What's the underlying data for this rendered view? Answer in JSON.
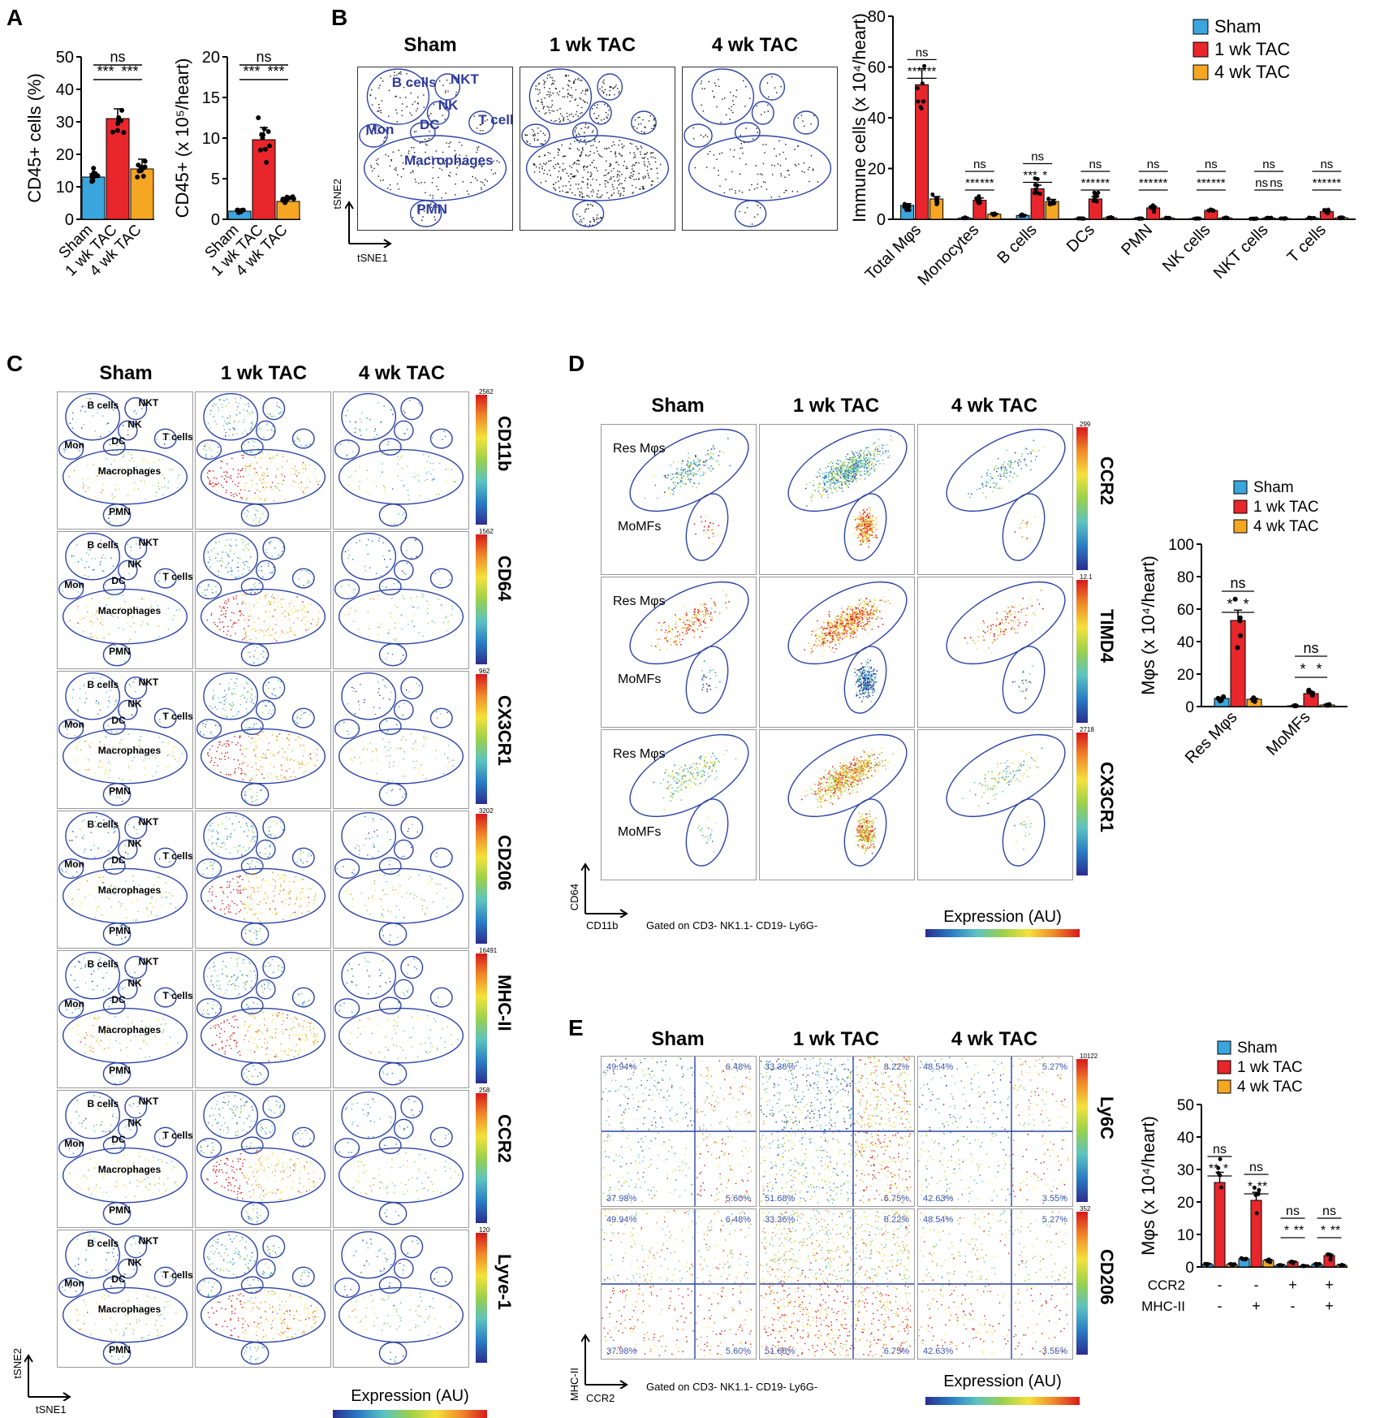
{
  "colors": {
    "sham": "#3aa6dd",
    "tac1": "#e8262b",
    "tac4": "#f5a623",
    "gate": "#2d44a6"
  },
  "panels": {
    "a": "A",
    "b": "B",
    "c": "C",
    "d": "D",
    "e": "E"
  },
  "groups": [
    "Sham",
    "1 wk TAC",
    "4 wk TAC"
  ],
  "cluster_labels": [
    "B cells",
    "NKT",
    "NK",
    "Mon",
    "DC",
    "T cells",
    "Macrophages",
    "PMN"
  ],
  "tsne_axes": {
    "y": "tSNE2",
    "x": "tSNE1"
  },
  "c_markers": [
    "CD11b",
    "CD64",
    "CX3CR1",
    "CD206",
    "MHC-II",
    "CCR2",
    "Lyve-1"
  ],
  "c_scale_max": [
    "2562",
    "1562",
    "962",
    "3202",
    "16491",
    "258",
    "120"
  ],
  "c_footer": "Expression (AU)",
  "d_markers": [
    "CCR2",
    "TIMD4",
    "CX3CR1"
  ],
  "d_scale_max": [
    "299",
    "12.1",
    "2718"
  ],
  "d_gates": {
    "res": "Res Mφs",
    "momf": "MoMFs"
  },
  "d_axes": {
    "y": "CD64",
    "x": "CD11b"
  },
  "d_gated": "Gated on CD3- NK1.1- CD19- Ly6G-",
  "d_footer": "Expression (AU)",
  "e_markers": [
    "Ly6C",
    "CD206"
  ],
  "e_scale_max": [
    "10122",
    "352"
  ],
  "e_axes": {
    "y": "MHC-II",
    "x": "CCR2"
  },
  "e_gated": "Gated on CD3- NK1.1- CD19- Ly6G-",
  "e_footer": "Expression (AU)",
  "e_quadrants": [
    [
      "49.94%",
      "6.48%",
      "37.98%",
      "5.60%"
    ],
    [
      "33.36%",
      "8.22%",
      "51.68%",
      "6.75%"
    ],
    [
      "48.54%",
      "5.27%",
      "42.63%",
      "3.55%"
    ]
  ],
  "chart_data": [
    {
      "id": "A1",
      "type": "bar",
      "ylabel": "CD45+ cells (%)",
      "ylim": [
        0,
        50
      ],
      "yticks": [
        0,
        10,
        20,
        30,
        40,
        50
      ],
      "categories": [
        "Sham",
        "1 wk TAC",
        "4 wk TAC"
      ],
      "values": [
        13,
        31,
        15.5
      ],
      "errors": [
        1,
        3,
        3
      ],
      "stats": [
        {
          "from": 0,
          "to": 1,
          "label": "***"
        },
        {
          "from": 1,
          "to": 2,
          "label": "***"
        },
        {
          "from": 0,
          "to": 2,
          "label": "ns"
        }
      ]
    },
    {
      "id": "A2",
      "type": "bar",
      "ylabel": "CD45+ (x 10⁵/heart)",
      "ylim": [
        0,
        20
      ],
      "yticks": [
        0,
        5,
        10,
        15,
        20
      ],
      "categories": [
        "Sham",
        "1 wk TAC",
        "4 wk TAC"
      ],
      "values": [
        1,
        9.8,
        2.2
      ],
      "errors": [
        0.2,
        1.5,
        0.4
      ],
      "stats": [
        {
          "from": 0,
          "to": 1,
          "label": "***"
        },
        {
          "from": 1,
          "to": 2,
          "label": "***"
        },
        {
          "from": 0,
          "to": 2,
          "label": "ns"
        }
      ]
    },
    {
      "id": "B",
      "type": "bar",
      "ylabel": "Immune cells (x 10⁴/heart)",
      "ylim": [
        0,
        80
      ],
      "yticks": [
        0,
        20,
        40,
        60,
        80
      ],
      "categories": [
        "Total Mφs",
        "Monocytes",
        "B cells",
        "DCs",
        "PMN",
        "NK cells",
        "NKT cells",
        "T cells"
      ],
      "series": [
        {
          "name": "Sham",
          "values": [
            5.5,
            0.5,
            1.5,
            0.3,
            0.3,
            0.3,
            0.2,
            0.5
          ]
        },
        {
          "name": "1 wk TAC",
          "values": [
            53,
            7.5,
            12,
            8,
            4.5,
            3.5,
            0.5,
            3
          ]
        },
        {
          "name": "4 wk TAC",
          "values": [
            8,
            2,
            7,
            0.6,
            0.5,
            0.5,
            0.3,
            0.6
          ]
        }
      ],
      "stats": [
        [
          "***",
          "***",
          "ns"
        ],
        [
          "***",
          "***",
          "ns"
        ],
        [
          "***",
          "*",
          "ns"
        ],
        [
          "***",
          "***",
          "ns"
        ],
        [
          "***",
          "***",
          "ns"
        ],
        [
          "***",
          "***",
          "ns"
        ],
        [
          "ns",
          "ns",
          "ns"
        ],
        [
          "***",
          "***",
          "ns"
        ]
      ]
    },
    {
      "id": "D",
      "type": "bar",
      "ylabel": "Mφs (x 10⁴/heart)",
      "ylim": [
        0,
        100
      ],
      "yticks": [
        0,
        20,
        40,
        60,
        80,
        100
      ],
      "categories": [
        "Res Mφs",
        "MoMFs"
      ],
      "series": [
        {
          "name": "Sham",
          "values": [
            5,
            0.5
          ]
        },
        {
          "name": "1 wk TAC",
          "values": [
            53,
            8
          ]
        },
        {
          "name": "4 wk TAC",
          "values": [
            4.5,
            1
          ]
        }
      ],
      "stats": [
        [
          "*",
          "*",
          "ns"
        ],
        [
          "*",
          "*",
          "ns"
        ]
      ]
    },
    {
      "id": "E",
      "type": "bar",
      "ylabel": "Mφs (x 10⁴/heart)",
      "ylim": [
        0,
        50
      ],
      "yticks": [
        0,
        10,
        20,
        30,
        40,
        50
      ],
      "categories": [
        "CCR2- MHC-II-",
        "CCR2- MHC-II+",
        "CCR2+ MHC-II-",
        "CCR2+ MHC-II+"
      ],
      "row_labels": [
        "CCR2",
        "MHC-II"
      ],
      "row_values": [
        [
          "-",
          "-",
          "+",
          "+"
        ],
        [
          "-",
          "+",
          "-",
          "+"
        ]
      ],
      "series": [
        {
          "name": "Sham",
          "values": [
            0.8,
            2.5,
            0.5,
            0.8
          ]
        },
        {
          "name": "1 wk TAC",
          "values": [
            26,
            20.5,
            1.5,
            3.5
          ]
        },
        {
          "name": "4 wk TAC",
          "values": [
            0.8,
            2,
            0.3,
            0.5
          ]
        }
      ],
      "stats": [
        [
          "**",
          "*",
          "ns"
        ],
        [
          "*",
          "**",
          "ns"
        ],
        [
          "*",
          "**",
          "ns"
        ],
        [
          "*",
          "**",
          "ns"
        ]
      ]
    }
  ]
}
